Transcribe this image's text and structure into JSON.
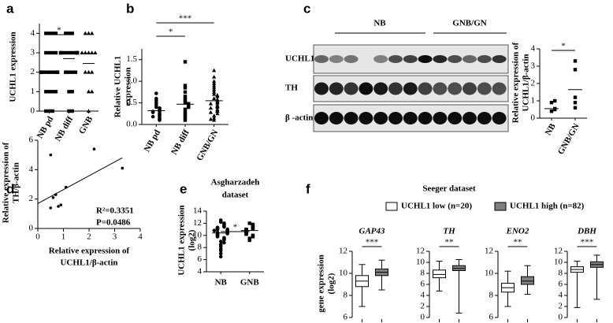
{
  "panel_labels": [
    "a",
    "b",
    "c",
    "d",
    "e",
    "f"
  ],
  "blot": {
    "columns": [
      "NB",
      "GNB/GN"
    ],
    "rows": [
      "UCHL1",
      "TH",
      "β -actin"
    ]
  },
  "chart_data": [
    {
      "type": "strip",
      "ylabel": [
        "UCHL1  expression"
      ],
      "categories": [
        "NB pd",
        "NB diff",
        "GNB"
      ],
      "markers": [
        "square",
        "square",
        "triangle"
      ],
      "color": "#000000",
      "ylim": [
        0,
        4.5
      ],
      "yticks": [
        0,
        1,
        2,
        3,
        4
      ],
      "values": [
        [
          4,
          4,
          4,
          4,
          3,
          3,
          3,
          3,
          2,
          2,
          2,
          2,
          2,
          2,
          2,
          2,
          2,
          1,
          1,
          1,
          1,
          0,
          0,
          0
        ],
        [
          4,
          4,
          4,
          3,
          3,
          3,
          3,
          3,
          3,
          3,
          3,
          3,
          3,
          2,
          2,
          2,
          2,
          1,
          1,
          0,
          0
        ],
        [
          4,
          4,
          4,
          3,
          3,
          3,
          3,
          3,
          2,
          2,
          2,
          1,
          1,
          0
        ]
      ],
      "means": [
        2.0,
        2.7,
        2.45
      ],
      "annotations": [
        {
          "text": "*",
          "pair": [
            0,
            1
          ]
        }
      ]
    },
    {
      "type": "strip",
      "ylabel": [
        "Relative UCHL1",
        "expression"
      ],
      "categories": [
        "NB pd",
        "NB diff",
        "GNB/GN"
      ],
      "markers": [
        "circle",
        "square",
        "triangle"
      ],
      "color": "#000000",
      "ylim": [
        0,
        1.75
      ],
      "yticks": [
        {
          "value": 0,
          "label": "0.0"
        },
        {
          "value": 0.5,
          "label": "0.5"
        },
        {
          "value": 1,
          "label": "1.0"
        },
        {
          "value": 1.5,
          "label": "1.5"
        }
      ],
      "values": [
        [
          0.72,
          0.6,
          0.55,
          0.5,
          0.45,
          0.4,
          0.38,
          0.35,
          0.33,
          0.3,
          0.3,
          0.28,
          0.25,
          0.22,
          0.2,
          0.18,
          0.15,
          0.12,
          0.1
        ],
        [
          1.45,
          0.9,
          0.85,
          0.75,
          0.65,
          0.6,
          0.55,
          0.5,
          0.48,
          0.45,
          0.42,
          0.4,
          0.35,
          0.3,
          0.25,
          0.2,
          0.15,
          0.1
        ],
        [
          1.25,
          1.1,
          1.0,
          0.95,
          0.9,
          0.85,
          0.8,
          0.75,
          0.7,
          0.68,
          0.65,
          0.6,
          0.58,
          0.55,
          0.52,
          0.5,
          0.48,
          0.45,
          0.42,
          0.4,
          0.38,
          0.35,
          0.32,
          0.3,
          0.28,
          0.25,
          0.2,
          0.15,
          0.1,
          0.12
        ]
      ],
      "means": [
        0.32,
        0.47,
        0.55
      ],
      "annotations": [
        {
          "text": "*",
          "pair": [
            0,
            1
          ]
        },
        {
          "text": "***",
          "pair": [
            0,
            2
          ]
        }
      ]
    },
    {
      "type": "strip",
      "ylabel": [
        "Relative expression of",
        "UCHL1/β-actin"
      ],
      "categories": [
        "NB",
        "GNB/GN"
      ],
      "markers": [
        "square",
        "square"
      ],
      "color": "#000000",
      "ylim": [
        0,
        4
      ],
      "yticks": [
        0,
        1,
        2,
        3,
        4
      ],
      "values": [
        [
          0.4,
          0.5,
          0.55,
          0.9,
          1.0
        ],
        [
          0.6,
          0.9,
          1.2,
          2.8,
          3.3
        ]
      ],
      "means": [
        0.55,
        1.65
      ],
      "annotations": [
        {
          "text": "*",
          "pair": [
            0,
            1
          ]
        }
      ]
    },
    {
      "type": "scatter",
      "ylabel": [
        "Relative expression of",
        "TH/β-actin"
      ],
      "xlabel": [
        "Relative expression of",
        "UCHL1/β-actin"
      ],
      "color": "#000000",
      "x": [
        0.5,
        0.5,
        0.6,
        0.7,
        0.8,
        0.9,
        1.1,
        2.2,
        3.3
      ],
      "values": [
        5.0,
        1.4,
        2.1,
        2.3,
        1.5,
        1.6,
        2.8,
        5.4,
        4.1
      ],
      "xlim": [
        0,
        4
      ],
      "xticks": [
        0,
        1,
        2,
        3,
        4
      ],
      "ylim": [
        0,
        6
      ],
      "yticks": [
        0,
        2,
        4,
        6
      ],
      "fit": {
        "slope": 0.94,
        "intercept": 1.7
      },
      "annotations": [
        "R²=0.3351",
        "P=0.0486"
      ]
    },
    {
      "type": "strip",
      "title": [
        "Asgharzadeh",
        "dataset"
      ],
      "ylabel": [
        "UCHL1 expression",
        "(log2)"
      ],
      "categories": [
        "NB",
        "GNB"
      ],
      "markers": [
        "circle",
        "square"
      ],
      "color": "#000000",
      "ylim": [
        4,
        14
      ],
      "yticks": [
        4,
        6,
        8,
        10,
        12,
        14
      ],
      "values": [
        [
          12.5,
          12.2,
          12.0,
          11.8,
          11.7,
          11.5,
          11.4,
          11.3,
          11.2,
          11.1,
          11.0,
          11.0,
          10.9,
          10.8,
          10.8,
          10.7,
          10.6,
          10.5,
          10.5,
          10.4,
          10.3,
          10.2,
          10.1,
          10.0,
          9.9,
          9.8,
          9.6,
          9.5,
          9.3,
          9.0,
          8.8,
          8.5,
          8.2,
          7.8,
          7.5,
          7.0,
          6.5
        ],
        [
          12.0,
          11.8,
          11.6,
          11.4,
          11.2,
          11.1,
          11.0,
          10.9,
          10.8,
          10.7,
          10.6,
          10.5,
          10.4,
          10.3,
          10.2,
          10.0,
          9.8,
          9.5,
          9.2
        ]
      ],
      "means": [
        10.4,
        10.8
      ],
      "annotations": [
        {
          "text": "*",
          "pair": [
            0,
            1
          ]
        }
      ]
    },
    {
      "type": "box",
      "title": "Seeger dataset",
      "ylabel": [
        "gene expression",
        "(log2)"
      ],
      "series": [
        {
          "name": "UCHL1 low (n=20)",
          "color": "#ffffff"
        },
        {
          "name": "UCHL1 high (n=82)",
          "color": "#808080"
        }
      ],
      "panels": [
        {
          "title": "GAP43",
          "ylim": [
            6,
            12
          ],
          "yticks": [
            6,
            8,
            10,
            12
          ],
          "boxes": [
            [
              7,
              8.8,
              9.3,
              9.8,
              10.8
            ],
            [
              8.5,
              9.8,
              10.1,
              10.4,
              11.2
            ]
          ],
          "annotation": "***"
        },
        {
          "title": "TH",
          "ylim": [
            0,
            12
          ],
          "yticks": [
            0,
            2,
            4,
            6,
            8,
            10,
            12
          ],
          "boxes": [
            [
              4.8,
              7.2,
              7.8,
              8.6,
              10.2
            ],
            [
              0.8,
              8.5,
              8.9,
              9.4,
              10.5
            ]
          ],
          "annotation": "**"
        },
        {
          "title": "ENO2",
          "ylim": [
            6,
            12
          ],
          "yticks": [
            6,
            8,
            10,
            12
          ],
          "boxes": [
            [
              7,
              8.3,
              8.7,
              9.1,
              10.2
            ],
            [
              8.1,
              9.0,
              9.3,
              9.7,
              10.7
            ]
          ],
          "annotation": "**"
        },
        {
          "title": "DBH",
          "ylim": [
            0,
            12
          ],
          "yticks": [
            0,
            2,
            4,
            6,
            8,
            10,
            12
          ],
          "boxes": [
            [
              1.8,
              8.2,
              8.7,
              9.2,
              10.2
            ],
            [
              3.3,
              9.1,
              9.6,
              10.1,
              11.3
            ]
          ],
          "annotation": "***"
        }
      ]
    }
  ]
}
